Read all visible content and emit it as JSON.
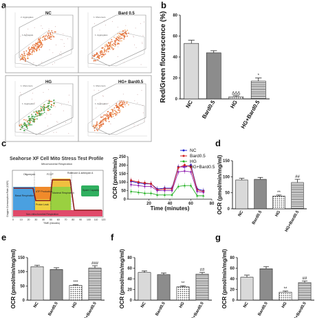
{
  "panel_labels": {
    "a": "a",
    "b": "b",
    "c": "c",
    "d": "d",
    "e": "e",
    "f": "f",
    "g": "g"
  },
  "flow_panels": [
    {
      "title": "NC",
      "gate1": "1.Aggregate",
      "gate2": "2. Aggregates"
    },
    {
      "title": "Bard 0.5",
      "gate1": "1. Aggregates",
      "gate2": "1. Monomers"
    },
    {
      "title": "HG",
      "gate1": "1. Aggregates",
      "gate2": "1. Monomers"
    },
    {
      "title": "HG+ Bard0.5",
      "gate1": "1. Aggregates",
      "gate2": "1. Monomers"
    }
  ],
  "seahorse": {
    "title": "Seahorse XF Cell Mito Stress Test Profile",
    "subtitle": "Mitochondrial Respiration",
    "ylabel": "Oxygen Consumption Rate (OCR)",
    "xlabel": "TIME (minutes)",
    "injections": [
      "Oligomycin",
      "FCCP",
      "Rotenone & antimycin A"
    ],
    "regions": [
      "Basal Respiration",
      "ATP Production",
      "Proton Leak",
      "Maximal Respiration",
      "Spare Capacity",
      "Non-mitochondrial Respiration"
    ]
  },
  "colors": {
    "NC": "#2020d0",
    "Bard0.5": "#d02020",
    "HG": "#20b020",
    "HG+Bard0.5": "#9020b0",
    "bar_NC": "#d9d9d9",
    "bar_Bard": "#8c8c8c"
  },
  "chart_data": [
    {
      "id": "b",
      "type": "bar",
      "categories": [
        "NC",
        "Bard0.5",
        "HG",
        "HG+Bard0.5"
      ],
      "values": [
        53,
        44,
        2,
        17
      ],
      "errors": [
        3,
        2,
        1,
        3
      ],
      "annotations": [
        "",
        "",
        "ΔΔΔ",
        "*"
      ],
      "ylabel": "Red/Green flourescence (%)",
      "ylim": [
        0,
        80
      ],
      "yticks": [
        0,
        20,
        40,
        60,
        80
      ]
    },
    {
      "id": "c",
      "type": "line",
      "x": [
        3,
        10,
        16,
        22,
        28,
        35,
        42,
        48,
        54,
        60,
        66,
        72
      ],
      "series": [
        {
          "name": "NC",
          "values": [
            105,
            95,
            90,
            90,
            60,
            65,
            65,
            190,
            190,
            200,
            60,
            50
          ]
        },
        {
          "name": "Bard0.5",
          "values": [
            110,
            100,
            95,
            90,
            55,
            60,
            60,
            185,
            200,
            190,
            55,
            45
          ]
        },
        {
          "name": "HG",
          "values": [
            45,
            40,
            35,
            35,
            25,
            25,
            25,
            75,
            80,
            80,
            20,
            20
          ]
        },
        {
          "name": "HG+Bard0.5",
          "values": [
            85,
            80,
            75,
            75,
            50,
            50,
            50,
            160,
            165,
            160,
            45,
            40
          ]
        }
      ],
      "ylabel": "OCR (pmol/min)",
      "xlabel": "Time (minutes)",
      "ylim": [
        0,
        250
      ],
      "xlim": [
        0,
        80
      ],
      "yticks": [
        0,
        50,
        100,
        150,
        200,
        250
      ],
      "xticks": [
        20,
        40,
        60,
        80
      ]
    },
    {
      "id": "d",
      "type": "bar",
      "categories": [
        "NC",
        "Bard0.5",
        "HG",
        "HG+Bard0.5"
      ],
      "values": [
        90,
        92,
        40,
        82
      ],
      "errors": [
        5,
        6,
        3,
        10
      ],
      "annotations": [
        "",
        "",
        "**",
        "##"
      ],
      "ylabel": "OCR (pmol/min/mg/ml)",
      "ylim": [
        0,
        150
      ],
      "yticks": [
        0,
        50,
        100,
        150
      ]
    },
    {
      "id": "e",
      "type": "bar",
      "categories": [
        "NC",
        "Bard0.5",
        "HG",
        "HG+Bard0.5"
      ],
      "values": [
        118,
        108,
        52,
        113
      ],
      "errors": [
        5,
        6,
        2,
        8
      ],
      "annotations": [
        "",
        "",
        "***",
        "###"
      ],
      "ylabel": "OCR (pmol/min/mg/ml)",
      "ylim": [
        0,
        150
      ],
      "yticks": [
        0,
        50,
        100,
        150
      ]
    },
    {
      "id": "f",
      "type": "bar",
      "categories": [
        "NC",
        "Bard0.5",
        "HG",
        "HG+Bard0.5"
      ],
      "values": [
        52,
        48,
        25,
        49
      ],
      "errors": [
        3,
        3,
        2,
        3
      ],
      "annotations": [
        "",
        "",
        "**",
        "##"
      ],
      "ylabel": "OCR (pmol/min/mg/ml)",
      "ylim": [
        0,
        80
      ],
      "yticks": [
        0,
        20,
        40,
        60,
        80
      ]
    },
    {
      "id": "g",
      "type": "bar",
      "categories": [
        "NC",
        "Bard0.5",
        "HG",
        "HG+Bard0.5"
      ],
      "values": [
        43,
        59,
        15,
        33
      ],
      "errors": [
        4,
        4,
        2,
        3
      ],
      "annotations": [
        "",
        "",
        "**",
        "##"
      ],
      "ylabel": "OCR (pmol/min/mg/ml)",
      "ylim": [
        0,
        80
      ],
      "yticks": [
        0,
        20,
        40,
        60,
        80
      ]
    }
  ]
}
